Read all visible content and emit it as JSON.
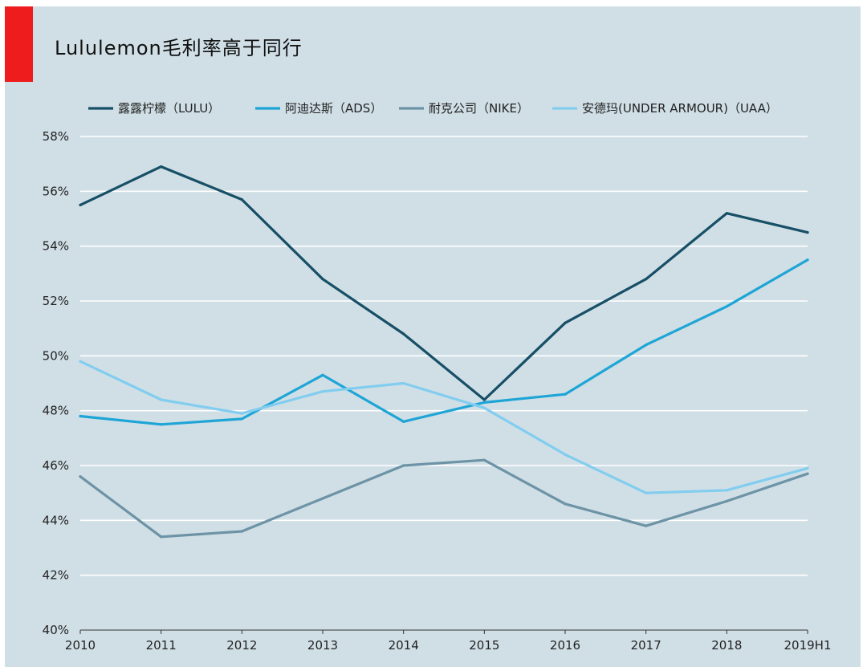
{
  "title": "Lululemon毛利率高于同行",
  "colors": {
    "background": "#d0dfe6",
    "accent": "#ee1c1c",
    "grid": "#ffffff"
  },
  "chart_data": {
    "type": "line",
    "title": "Lululemon毛利率高于同行",
    "xlabel": "",
    "ylabel": "",
    "categories": [
      "2010",
      "2011",
      "2012",
      "2013",
      "2014",
      "2015",
      "2016",
      "2017",
      "2018",
      "2019H1"
    ],
    "ylim": [
      40,
      58
    ],
    "yticks": [
      40,
      42,
      44,
      46,
      48,
      50,
      52,
      54,
      56,
      58
    ],
    "ytick_labels": [
      "40%",
      "42%",
      "44%",
      "46%",
      "48%",
      "50%",
      "52%",
      "54%",
      "56%",
      "58%"
    ],
    "grid": true,
    "legend_position": "top",
    "series": [
      {
        "name": "露露柠檬（LULU）",
        "color": "#174f66",
        "values": [
          55.5,
          56.9,
          55.7,
          52.8,
          50.8,
          48.4,
          51.2,
          52.8,
          55.2,
          54.5
        ]
      },
      {
        "name": "阿迪达斯（ADS）",
        "color": "#1ea5d6",
        "values": [
          47.8,
          47.5,
          47.7,
          49.3,
          47.6,
          48.3,
          48.6,
          50.4,
          51.8,
          53.5
        ]
      },
      {
        "name": "耐克公司（NIKE）",
        "color": "#6d93a6",
        "values": [
          45.6,
          43.4,
          43.6,
          44.8,
          46.0,
          46.2,
          44.6,
          43.8,
          44.7,
          45.7
        ]
      },
      {
        "name": "安德玛(UNDER ARMOUR)（UAA）",
        "color": "#82cdef",
        "values": [
          49.8,
          48.4,
          47.9,
          48.7,
          49.0,
          48.1,
          46.4,
          45.0,
          45.1,
          45.9
        ]
      }
    ]
  }
}
